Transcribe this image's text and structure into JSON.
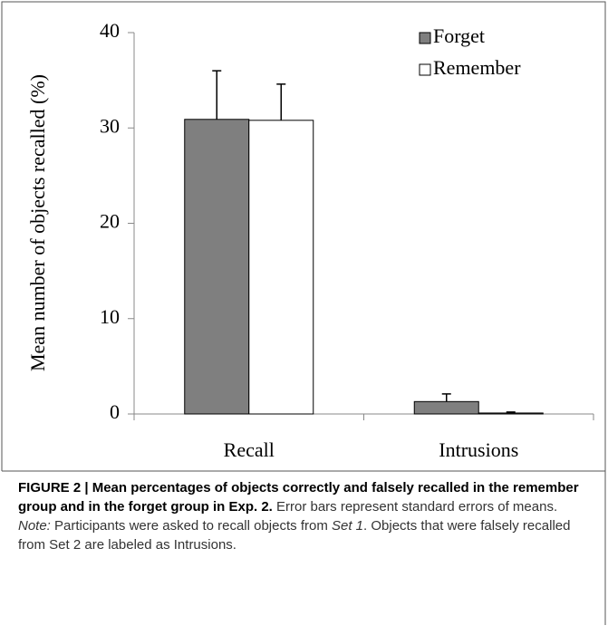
{
  "chart_data": {
    "type": "bar",
    "y_label": "Mean number of objects recalled (%)",
    "categories": [
      "Recall",
      "Intrusions"
    ],
    "series": [
      {
        "name": "Forget",
        "color": "#7f7f7f",
        "values": [
          30.9,
          1.3
        ],
        "errors": [
          5.1,
          0.8
        ]
      },
      {
        "name": "Remember",
        "color": "#ffffff",
        "values": [
          30.8,
          0.1
        ],
        "errors": [
          3.8,
          0.1
        ]
      }
    ],
    "ylim": [
      0,
      40
    ],
    "yticks": [
      0,
      10,
      20,
      30,
      40
    ],
    "legend": "upper right"
  },
  "caption": [
    {
      "text": "FIGURE 2 | Mean percentages of objects correctly and falsely recalled in the remember group and in the forget group in Exp. 2.",
      "style": "bold"
    },
    {
      "text": " Error bars represent standard errors of means. ",
      "style": "normal"
    },
    {
      "text": "Note:",
      "style": "italic"
    },
    {
      "text": " Participants were asked to recall objects from ",
      "style": "normal"
    },
    {
      "text": "Set 1",
      "style": "italic"
    },
    {
      "text": ". Objects that were falsely recalled from Set 2 are labeled as Intrusions.",
      "style": "normal"
    }
  ]
}
